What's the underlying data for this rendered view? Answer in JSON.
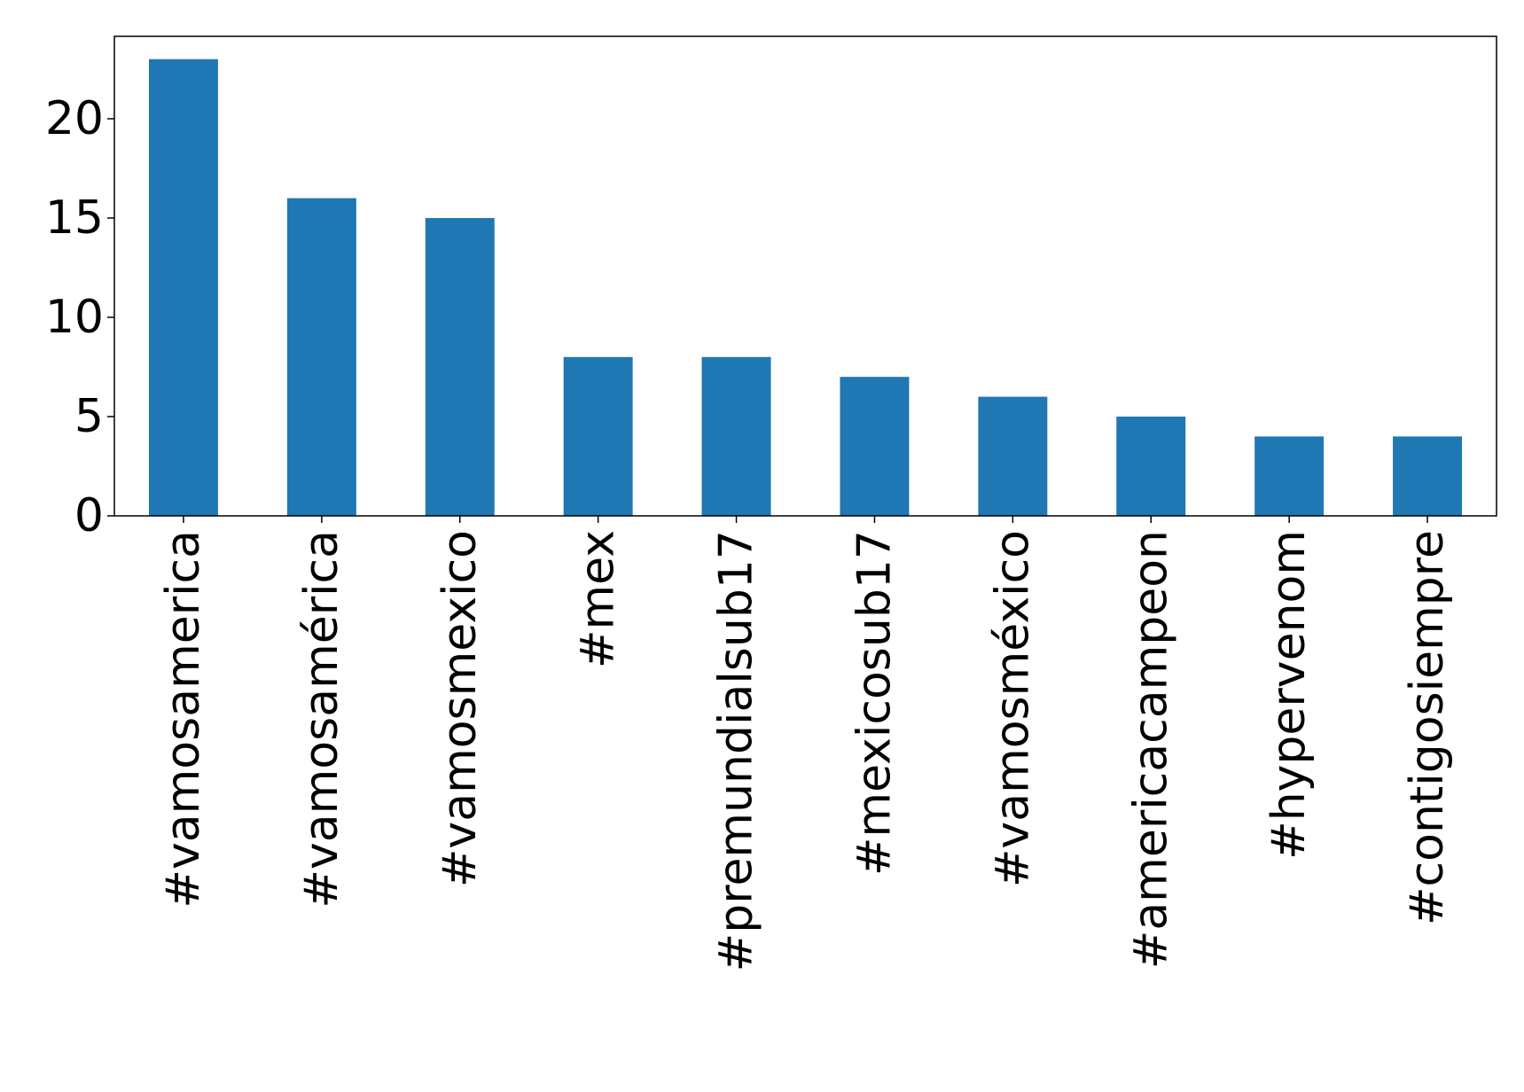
{
  "chart_data": {
    "type": "bar",
    "title": "",
    "xlabel": "",
    "ylabel": "",
    "categories": [
      "#vamosamerica",
      "#vamosamérica",
      "#vamosmexico",
      "#mex",
      "#premundialsub17",
      "#mexicosub17",
      "#vamosméxico",
      "#americacampeon",
      "#hypervenom",
      "#contigosiempre"
    ],
    "values": [
      23,
      16,
      15,
      8,
      8,
      7,
      6,
      5,
      4,
      4
    ],
    "ylim": [
      0,
      24.15
    ],
    "yticks": [
      "0",
      "5",
      "10",
      "15",
      "20"
    ],
    "grid": false,
    "legend": "none",
    "bar_color": "#1f77b4"
  }
}
